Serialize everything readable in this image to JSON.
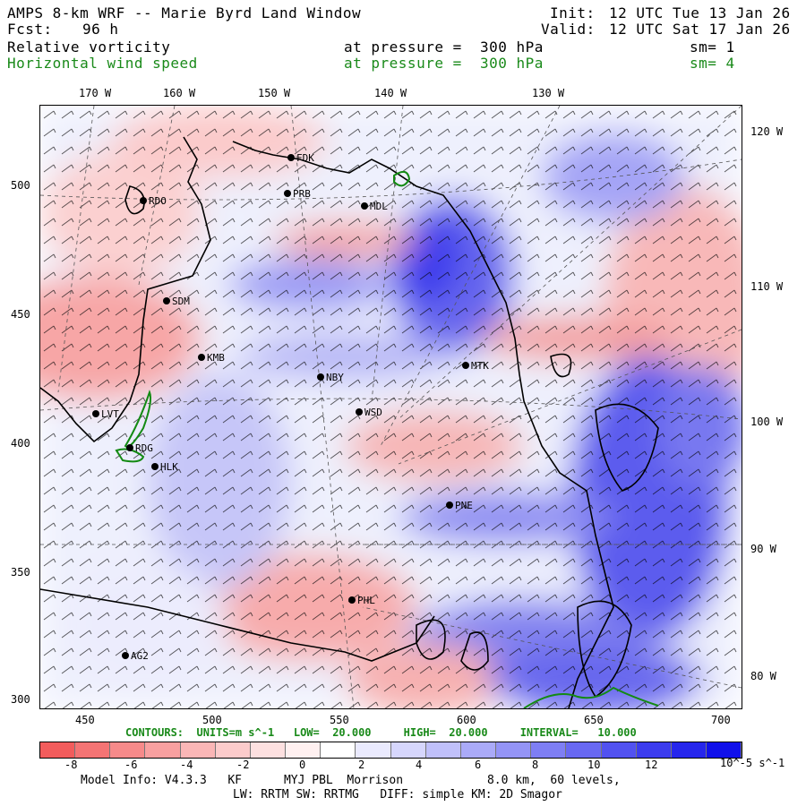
{
  "header": {
    "title": "AMPS 8-km WRF -- Marie Byrd Land Window",
    "init_label": "Init:",
    "init_value": "12 UTC Tue 13 Jan 26",
    "fcst_label": "Fcst:",
    "fcst_value": "96 h",
    "valid_label": "Valid:",
    "valid_value": "12 UTC Sat 17 Jan 26",
    "field1": "Relative vorticity",
    "field1_pressure": "at pressure =  300 hPa",
    "field1_sm": "sm= 1",
    "field2": "Horizontal wind speed",
    "field2_pressure": "at pressure =  300 hPa",
    "field2_sm": "sm= 4"
  },
  "map": {
    "top_lon_labels": [
      "170 W",
      "160 W",
      "150 W",
      "140 W",
      "130 W"
    ],
    "right_lon_labels": [
      "120 W",
      "110 W",
      "100 W",
      "90 W",
      "80 W"
    ],
    "left_ticks": [
      "500",
      "450",
      "400",
      "350",
      "300"
    ],
    "bottom_ticks": [
      "450",
      "500",
      "550",
      "600",
      "650",
      "700"
    ],
    "stations": [
      "FDK",
      "RDO",
      "PRB",
      "MDL",
      "SDM",
      "KMB",
      "NBY",
      "MTK",
      "WSD",
      "LVT",
      "RDG",
      "HLK",
      "PNE",
      "PHL",
      "AG2"
    ]
  },
  "contours": {
    "line": "CONTOURS:  UNITS=m s^-1   LOW=  20.000     HIGH=  20.000     INTERVAL=   10.000"
  },
  "colorbar": {
    "labels": [
      "-8",
      "-6",
      "-4",
      "-2",
      "0",
      "2",
      "4",
      "6",
      "8",
      "10",
      "12"
    ],
    "units": "10^-5 s^-1",
    "colors": [
      "#f25c5c",
      "#f47474",
      "#f68a8a",
      "#f8a0a0",
      "#fab6b6",
      "#fccbcb",
      "#fde0e0",
      "#fff0f0",
      "#ffffff",
      "#eaeafe",
      "#d6d6fc",
      "#c0c0fa",
      "#aaaaf8",
      "#9494f6",
      "#7e7ef4",
      "#6868f2",
      "#5252f0",
      "#3c3cee",
      "#2626ec",
      "#1010ea"
    ]
  },
  "footer": {
    "line1": "Model Info: V4.3.3   KF      MYJ PBL  Morrison            8.0 km,  60 levels,",
    "line2": "LW: RRTM SW: RRTMG   DIFF: simple KM: 2D Smagor"
  }
}
